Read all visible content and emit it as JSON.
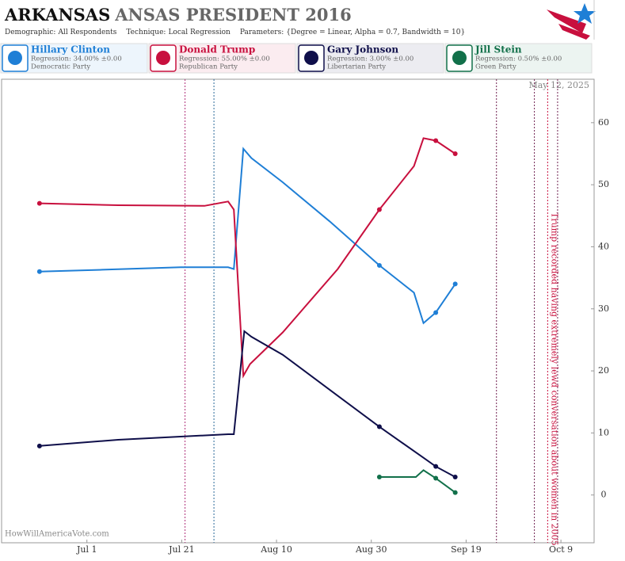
{
  "chart_data": {
    "type": "line",
    "title": "ARKANSAS",
    "title_rest": "ANSAS PRESIDENT 2016",
    "demographic_label": "Demographic:",
    "demographic": "All Respondents",
    "technique_label": "Technique:",
    "technique": "Local Regression",
    "parameters_label": "Parameters:",
    "parameters": "{Degree = Linear, Alpha = 0.7, Bandwidth = 10}",
    "date": "May 12, 2025",
    "watermark": "HowWillAmericaVote.com",
    "xlim": [
      -18,
      107
    ],
    "ylim": [
      -7.7,
      67
    ],
    "xticks": [
      {
        "value": 0,
        "label": "Jul 1"
      },
      {
        "value": 20,
        "label": "Jul 21"
      },
      {
        "value": 40,
        "label": "Aug 10"
      },
      {
        "value": 60,
        "label": "Aug 30"
      },
      {
        "value": 80,
        "label": "Sep 19"
      },
      {
        "value": 100,
        "label": "Oct 9"
      }
    ],
    "yticks": [
      0,
      10,
      20,
      30,
      40,
      50,
      60
    ],
    "series": [
      {
        "name": "Hillary Clinton",
        "color": "#1f7fd6",
        "regression": "Regression: 34.00% ±0.00",
        "party": "Democratic Party",
        "x": [
          -10,
          3.3,
          19.8,
          29.8,
          31,
          33,
          34.7,
          41.3,
          51.2,
          61.7,
          69,
          71,
          73.6,
          77.7
        ],
        "values": [
          36,
          36.3,
          36.7,
          36.7,
          36.4,
          55.8,
          54.3,
          50.4,
          44.1,
          37,
          32.6,
          27.7,
          29.4,
          34
        ],
        "poll_x": [
          -10,
          61.7,
          73.6,
          77.7
        ],
        "poll_values": [
          36,
          37,
          29.4,
          34
        ]
      },
      {
        "name": "Donald Trump",
        "color": "#c8103e",
        "regression": "Regression: 55.00% ±0.00",
        "party": "Republican Party",
        "x": [
          -10,
          6.6,
          24.8,
          29.8,
          31,
          33,
          34.4,
          41.3,
          52.9,
          61.7,
          69,
          71,
          73.6,
          77.7
        ],
        "values": [
          47,
          46.7,
          46.6,
          47.3,
          46,
          19.2,
          21.1,
          26.2,
          36.4,
          46,
          53,
          57.5,
          57.1,
          55
        ],
        "poll_x": [
          -10,
          61.7,
          73.6,
          77.7
        ],
        "poll_values": [
          47,
          46,
          57.1,
          55
        ]
      },
      {
        "name": "Gary Johnson",
        "color": "#0f0f4a",
        "regression": "Regression: 3.00% ±0.00",
        "party": "Libertarian Party",
        "x": [
          -10,
          6.6,
          29.8,
          31,
          33.2,
          34.7,
          41.3,
          52.9,
          61.7,
          71,
          73.6,
          77.7
        ],
        "values": [
          7.9,
          8.9,
          9.8,
          9.8,
          26.4,
          25.5,
          22.6,
          16,
          11,
          6,
          4.6,
          2.9
        ],
        "poll_x": [
          -10,
          61.7,
          73.6,
          77.7
        ],
        "poll_values": [
          7.9,
          11,
          4.6,
          2.9
        ]
      },
      {
        "name": "Jill Stein",
        "color": "#12704a",
        "regression": "Regression: 0.50% ±0.00",
        "party": "Green Party",
        "x": [
          61.7,
          69.4,
          71,
          73.6,
          77.7
        ],
        "values": [
          2.9,
          2.9,
          4,
          2.7,
          0.4
        ],
        "poll_x": [
          61.7,
          73.6,
          77.7
        ],
        "poll_values": [
          2.9,
          2.7,
          0.4
        ]
      }
    ],
    "events": [
      {
        "x": 20.7,
        "color": "#b0307a"
      },
      {
        "x": 26.8,
        "color": "#2a6a9a"
      },
      {
        "x": 86.4,
        "color": "#702050"
      },
      {
        "x": 94.4,
        "color": "#702050"
      },
      {
        "x": 97.2,
        "color": "#c8103e",
        "label": "Trump recorded having extremely lewd conversation about women in 2005"
      },
      {
        "x": 99.3,
        "color": "#702050"
      }
    ]
  }
}
